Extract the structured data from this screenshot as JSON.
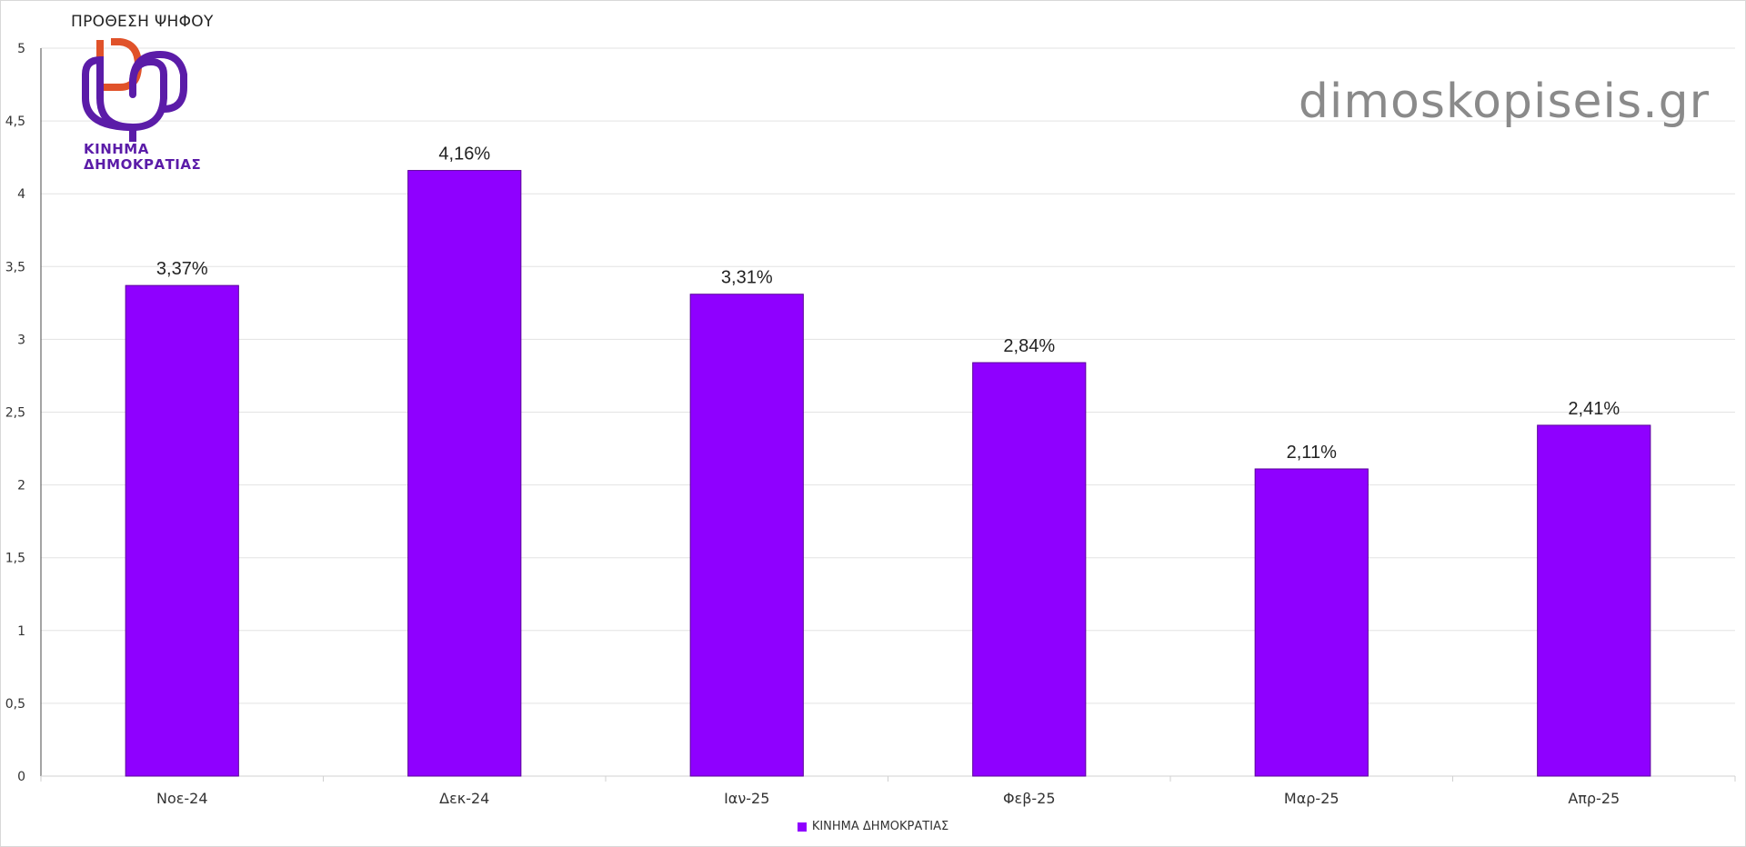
{
  "chart_data": {
    "type": "bar",
    "title": "ΠΡΟΘΕΣΗ ΨΗΦΟΥ",
    "categories": [
      "Νοε-24",
      "Δεκ-24",
      "Ιαν-25",
      "Φεβ-25",
      "Μαρ-25",
      "Απρ-25"
    ],
    "series": [
      {
        "name": "ΚΙΝΗΜΑ ΔΗΜΟΚΡΑΤΙΑΣ",
        "values": [
          3.37,
          4.16,
          3.31,
          2.84,
          2.11,
          2.41
        ],
        "labels": [
          "3,37%",
          "4,16%",
          "3,31%",
          "2,84%",
          "2,11%",
          "2,41%"
        ],
        "color": "#8f00ff"
      }
    ],
    "ylim": [
      0,
      5
    ],
    "yticks": [
      0,
      0.5,
      1,
      1.5,
      2,
      2.5,
      3,
      3.5,
      4,
      4.5,
      5
    ],
    "ytick_labels": [
      "0",
      "0,5",
      "1",
      "1,5",
      "2",
      "2,5",
      "3",
      "3,5",
      "4",
      "4,5",
      "5"
    ],
    "grid": true,
    "legend": "bottom-center"
  },
  "logo": {
    "line1": "ΚΙΝΗΜΑ",
    "line2": "ΔΗΜΟΚΡΑΤΙΑΣ",
    "color_orange": "#e0522a",
    "color_purple": "#5b1ca8"
  },
  "watermark": "dimoskopiseis.gr"
}
